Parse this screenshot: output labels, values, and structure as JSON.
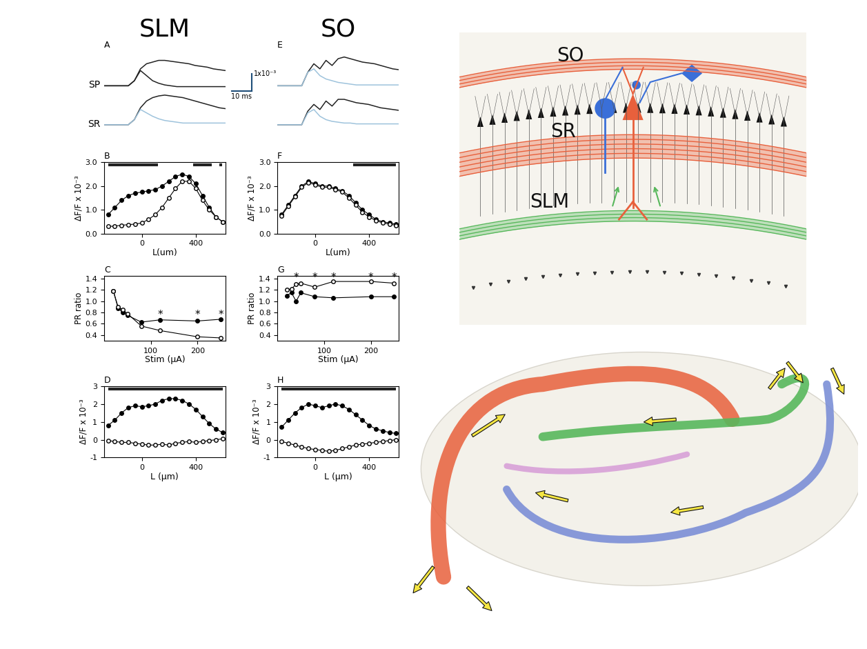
{
  "headers": [
    "SLM",
    "SO"
  ],
  "scale_bar": {
    "x": 10,
    "y": 1,
    "x_label": "10 ms",
    "y_label": "1x10⁻³"
  },
  "chart_data": [
    {
      "panel": "A",
      "type": "line",
      "tick_labels": false,
      "xlim": [
        0,
        60
      ],
      "ylim": [
        -0.3,
        2.0
      ],
      "x": [
        0,
        3,
        6,
        9,
        12,
        15,
        18,
        21,
        24,
        27,
        30,
        33,
        36,
        39,
        42,
        45,
        48,
        51,
        54,
        57,
        60
      ],
      "rows": [
        {
          "label": "SP",
          "series": [
            {
              "color": "#222222",
              "values": [
                0,
                0,
                0,
                0,
                0,
                0.3,
                1.0,
                1.3,
                1.4,
                1.5,
                1.5,
                1.45,
                1.4,
                1.35,
                1.3,
                1.2,
                1.15,
                1.1,
                1.0,
                0.95,
                0.9
              ]
            },
            {
              "color": "#222222",
              "values": [
                0,
                0,
                0,
                0,
                0,
                0.3,
                0.9,
                0.6,
                0.3,
                0.15,
                0.05,
                0,
                -0.05,
                -0.05,
                -0.05,
                -0.05,
                -0.05,
                -0.05,
                -0.05,
                -0.05,
                -0.05
              ]
            }
          ]
        },
        {
          "label": "SR",
          "series": [
            {
              "color": "#222222",
              "values": [
                0,
                0,
                0,
                0,
                0,
                0.3,
                1.0,
                1.4,
                1.6,
                1.7,
                1.75,
                1.7,
                1.65,
                1.6,
                1.5,
                1.4,
                1.3,
                1.2,
                1.1,
                1.0,
                0.95
              ]
            },
            {
              "color": "#9ec3dc",
              "values": [
                0,
                0,
                0,
                0,
                0,
                0.3,
                0.9,
                0.7,
                0.5,
                0.35,
                0.25,
                0.2,
                0.15,
                0.1,
                0.1,
                0.1,
                0.1,
                0.1,
                0.1,
                0.1,
                0.1
              ]
            }
          ]
        }
      ]
    },
    {
      "panel": "B",
      "type": "line",
      "xlim": [
        -280,
        620
      ],
      "xticks": [
        0,
        400
      ],
      "ylim": [
        0,
        3
      ],
      "yticks": [
        {
          "value": 0,
          "label": "0.0"
        },
        {
          "value": 1,
          "label": "1.0"
        },
        {
          "value": 2,
          "label": "2.0"
        },
        {
          "value": 3,
          "label": "3.0"
        }
      ],
      "xlabel": "L(um)",
      "ylabel": "ΔF/F x 10⁻³",
      "x": [
        -250,
        -200,
        -150,
        -100,
        -50,
        0,
        50,
        100,
        150,
        200,
        250,
        300,
        350,
        400,
        450,
        500,
        550,
        600
      ],
      "series": [
        {
          "color": "#000000",
          "marker": "circle",
          "values": [
            0.8,
            1.1,
            1.4,
            1.6,
            1.7,
            1.75,
            1.8,
            1.85,
            2.0,
            2.2,
            2.4,
            2.5,
            2.4,
            2.1,
            1.6,
            1.1,
            0.7,
            0.5
          ]
        },
        {
          "color": "#000000",
          "marker": "open-circle",
          "values": [
            0.3,
            0.32,
            0.35,
            0.38,
            0.4,
            0.45,
            0.6,
            0.8,
            1.1,
            1.5,
            1.9,
            2.2,
            2.2,
            1.9,
            1.4,
            1.0,
            0.7,
            0.5
          ]
        }
      ],
      "significance_bars": [
        [
          -250,
          120
        ],
        [
          380,
          520
        ],
        [
          575,
          595
        ]
      ]
    },
    {
      "panel": "C",
      "type": "line",
      "xlim": [
        0,
        260
      ],
      "xticks": [
        100,
        200
      ],
      "ylim": [
        0.3,
        1.45
      ],
      "yticks": [
        {
          "value": 0.4,
          "label": "0.4"
        },
        {
          "value": 0.6,
          "label": "0.6"
        },
        {
          "value": 0.8,
          "label": "0.8"
        },
        {
          "value": 1.0,
          "label": "1.0"
        },
        {
          "value": 1.2,
          "label": "1.2"
        },
        {
          "value": 1.4,
          "label": "1.4"
        }
      ],
      "xlabel": "Stim (μA)",
      "ylabel": "PR ratio",
      "x": [
        20,
        30,
        40,
        50,
        80,
        120,
        200,
        250
      ],
      "series": [
        {
          "color": "#000000",
          "marker": "circle",
          "values": [
            1.18,
            0.88,
            0.8,
            0.75,
            0.63,
            0.67,
            0.65,
            0.68
          ]
        },
        {
          "color": "#000000",
          "marker": "open-circle",
          "values": [
            1.18,
            0.9,
            0.85,
            0.78,
            0.56,
            0.48,
            0.37,
            0.35
          ]
        }
      ],
      "annotations": [
        {
          "x": 120,
          "y": 0.76,
          "text": "*"
        },
        {
          "x": 200,
          "y": 0.76,
          "text": "*"
        },
        {
          "x": 250,
          "y": 0.76,
          "text": "*"
        }
      ]
    },
    {
      "panel": "D",
      "type": "line",
      "xlim": [
        -280,
        620
      ],
      "xticks": [
        0,
        400
      ],
      "ylim": [
        -1,
        3
      ],
      "yticks": [
        -1,
        0,
        1,
        2,
        3
      ],
      "xlabel": "L (μm)",
      "ylabel": "ΔF/F x 10⁻³",
      "x": [
        -250,
        -200,
        -150,
        -100,
        -50,
        0,
        50,
        100,
        150,
        200,
        250,
        300,
        350,
        400,
        450,
        500,
        550,
        600
      ],
      "series": [
        {
          "color": "#000000",
          "marker": "circle",
          "values": [
            0.8,
            1.1,
            1.5,
            1.8,
            1.9,
            1.85,
            1.9,
            2.0,
            2.2,
            2.3,
            2.3,
            2.2,
            2.0,
            1.7,
            1.3,
            0.9,
            0.6,
            0.4
          ]
        },
        {
          "color": "#000000",
          "marker": "open-circle",
          "values": [
            -0.05,
            -0.1,
            -0.15,
            -0.15,
            -0.2,
            -0.25,
            -0.3,
            -0.3,
            -0.25,
            -0.3,
            -0.2,
            -0.15,
            -0.1,
            -0.15,
            -0.1,
            -0.05,
            0.0,
            0.05
          ]
        }
      ],
      "significance_bars": [
        [
          -250,
          600
        ]
      ]
    },
    {
      "panel": "E",
      "type": "line",
      "tick_labels": false,
      "xlim": [
        0,
        60
      ],
      "ylim": [
        -0.3,
        2.0
      ],
      "x": [
        0,
        3,
        6,
        9,
        12,
        15,
        18,
        21,
        24,
        27,
        30,
        33,
        36,
        39,
        42,
        45,
        48,
        51,
        54,
        57,
        60
      ],
      "rows": [
        {
          "series": [
            {
              "color": "#222222",
              "values": [
                0,
                0,
                0,
                0,
                0,
                0.8,
                1.3,
                1.0,
                1.5,
                1.2,
                1.6,
                1.7,
                1.6,
                1.5,
                1.4,
                1.35,
                1.3,
                1.2,
                1.1,
                1.0,
                0.95
              ]
            },
            {
              "color": "#9ec3dc",
              "values": [
                0,
                0,
                0,
                0,
                0,
                0.8,
                1.0,
                0.6,
                0.4,
                0.3,
                0.2,
                0.15,
                0.1,
                0.05,
                0.05,
                0.05,
                0.05,
                0.05,
                0.05,
                0.05,
                0.05
              ]
            }
          ]
        },
        {
          "series": [
            {
              "color": "#222222",
              "values": [
                0,
                0,
                0,
                0,
                0,
                0.8,
                1.2,
                0.9,
                1.4,
                1.1,
                1.5,
                1.5,
                1.4,
                1.3,
                1.25,
                1.2,
                1.1,
                1.0,
                0.95,
                0.9,
                0.85
              ]
            },
            {
              "color": "#9ec3dc",
              "values": [
                0,
                0,
                0,
                0,
                0,
                0.7,
                0.9,
                0.5,
                0.3,
                0.2,
                0.15,
                0.1,
                0.1,
                0.05,
                0.05,
                0.05,
                0.05,
                0.05,
                0.05,
                0.05,
                0.05
              ]
            }
          ]
        }
      ]
    },
    {
      "panel": "F",
      "type": "line",
      "xlim": [
        -280,
        620
      ],
      "xticks": [
        0,
        400
      ],
      "ylim": [
        0,
        3
      ],
      "yticks": [
        {
          "value": 0,
          "label": "0.0"
        },
        {
          "value": 1,
          "label": "1.0"
        },
        {
          "value": 2,
          "label": "2.0"
        },
        {
          "value": 3,
          "label": "3.0"
        }
      ],
      "xlabel": "L(um)",
      "ylabel": "ΔF/F x 10⁻³",
      "x": [
        -250,
        -200,
        -150,
        -100,
        -50,
        0,
        50,
        100,
        150,
        200,
        250,
        300,
        350,
        400,
        450,
        500,
        550,
        600
      ],
      "series": [
        {
          "color": "#000000",
          "marker": "circle",
          "values": [
            0.8,
            1.2,
            1.6,
            2.0,
            2.2,
            2.1,
            2.0,
            2.0,
            1.9,
            1.8,
            1.6,
            1.3,
            1.0,
            0.8,
            0.6,
            0.5,
            0.45,
            0.4
          ]
        },
        {
          "color": "#000000",
          "marker": "open-circle",
          "values": [
            0.75,
            1.15,
            1.55,
            1.95,
            2.15,
            2.05,
            1.95,
            1.95,
            1.85,
            1.75,
            1.5,
            1.2,
            0.9,
            0.7,
            0.55,
            0.45,
            0.4,
            0.35
          ]
        }
      ],
      "significance_bars": [
        [
          280,
          600
        ]
      ]
    },
    {
      "panel": "G",
      "type": "line",
      "xlim": [
        0,
        260
      ],
      "xticks": [
        100,
        200
      ],
      "ylim": [
        0.3,
        1.45
      ],
      "yticks": [
        {
          "value": 0.4,
          "label": "0.4"
        },
        {
          "value": 0.6,
          "label": "0.6"
        },
        {
          "value": 0.8,
          "label": "0.8"
        },
        {
          "value": 1.0,
          "label": "1.0"
        },
        {
          "value": 1.2,
          "label": "1.2"
        },
        {
          "value": 1.4,
          "label": "1.4"
        }
      ],
      "xlabel": "Stim (μA)",
      "ylabel": "PR ratio",
      "x": [
        20,
        30,
        40,
        50,
        80,
        120,
        200,
        250
      ],
      "series": [
        {
          "color": "#000000",
          "marker": "circle",
          "values": [
            1.1,
            1.15,
            1.0,
            1.15,
            1.08,
            1.06,
            1.08,
            1.08
          ]
        },
        {
          "color": "#000000",
          "marker": "open-circle",
          "values": [
            1.2,
            1.22,
            1.3,
            1.32,
            1.25,
            1.35,
            1.35,
            1.32
          ]
        }
      ],
      "annotations": [
        {
          "x": 40,
          "y": 1.42,
          "text": "*"
        },
        {
          "x": 80,
          "y": 1.42,
          "text": "*"
        },
        {
          "x": 120,
          "y": 1.42,
          "text": "*"
        },
        {
          "x": 200,
          "y": 1.42,
          "text": "*"
        },
        {
          "x": 250,
          "y": 1.42,
          "text": "*"
        }
      ]
    },
    {
      "panel": "H",
      "type": "line",
      "xlim": [
        -280,
        620
      ],
      "xticks": [
        0,
        400
      ],
      "ylim": [
        -1,
        3
      ],
      "yticks": [
        -1,
        0,
        1,
        2,
        3
      ],
      "xlabel": "L (μm)",
      "ylabel": "ΔF/F x 10⁻³",
      "x": [
        -250,
        -200,
        -150,
        -100,
        -50,
        0,
        50,
        100,
        150,
        200,
        250,
        300,
        350,
        400,
        450,
        500,
        550,
        600
      ],
      "series": [
        {
          "color": "#000000",
          "marker": "circle",
          "values": [
            0.7,
            1.1,
            1.5,
            1.8,
            2.0,
            1.9,
            1.8,
            1.9,
            2.0,
            1.9,
            1.7,
            1.4,
            1.1,
            0.8,
            0.6,
            0.5,
            0.4,
            0.35
          ]
        },
        {
          "color": "#000000",
          "marker": "open-circle",
          "values": [
            -0.1,
            -0.2,
            -0.3,
            -0.4,
            -0.5,
            -0.55,
            -0.6,
            -0.65,
            -0.6,
            -0.5,
            -0.4,
            -0.3,
            -0.25,
            -0.2,
            -0.15,
            -0.1,
            -0.05,
            0.0
          ]
        }
      ],
      "significance_bars": [
        [
          -250,
          600
        ]
      ]
    }
  ],
  "diagram": {
    "layers": [
      {
        "label": "SO",
        "color": "#e8603c"
      },
      {
        "label": "SR",
        "color": "#e8603c"
      },
      {
        "label": "SLM",
        "color": "#58b85c"
      }
    ]
  }
}
